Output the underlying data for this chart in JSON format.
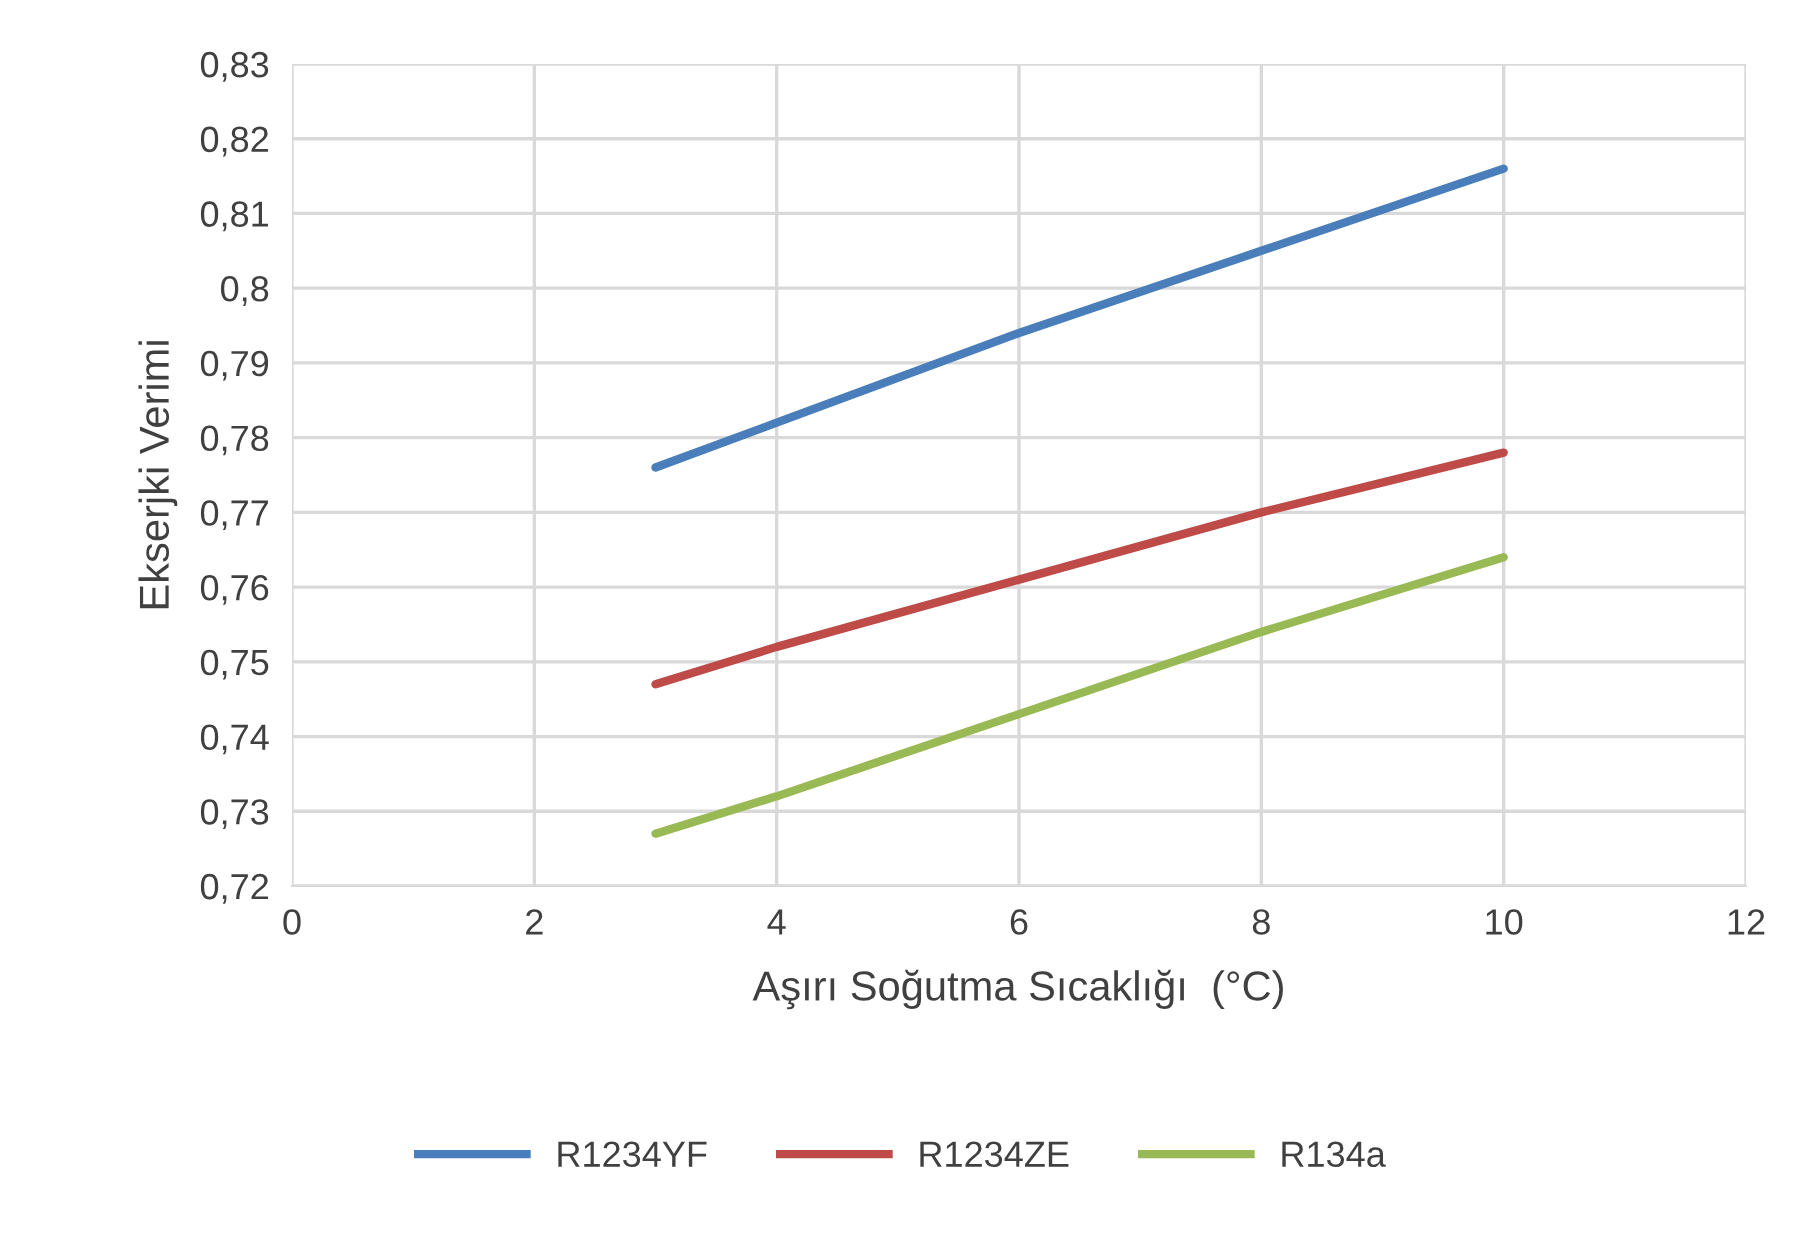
{
  "chart_data": {
    "type": "line",
    "xlabel": "Aşırı Soğutma Sıcaklığı  (°C)",
    "ylabel": "Ekserjki Verimi",
    "x": [
      3,
      4,
      6,
      8,
      10
    ],
    "series": [
      {
        "name": "R1234YF",
        "color": "#4a7ebb",
        "values": [
          0.776,
          0.782,
          0.794,
          0.805,
          0.816
        ]
      },
      {
        "name": "R1234ZE",
        "color": "#be4b48",
        "values": [
          0.747,
          0.752,
          0.761,
          0.77,
          0.778
        ]
      },
      {
        "name": "R134a",
        "color": "#98b954",
        "values": [
          0.727,
          0.732,
          0.743,
          0.754,
          0.764
        ]
      }
    ],
    "xlim": [
      0,
      12
    ],
    "xticks": [
      0,
      2,
      4,
      6,
      8,
      10,
      12
    ],
    "ylim": [
      0.72,
      0.83
    ],
    "yticks": [
      {
        "value": 0.72,
        "label": "0,72"
      },
      {
        "value": 0.73,
        "label": "0,73"
      },
      {
        "value": 0.74,
        "label": "0,74"
      },
      {
        "value": 0.75,
        "label": "0,75"
      },
      {
        "value": 0.76,
        "label": "0,76"
      },
      {
        "value": 0.77,
        "label": "0,77"
      },
      {
        "value": 0.78,
        "label": "0,78"
      },
      {
        "value": 0.79,
        "label": "0,79"
      },
      {
        "value": 0.8,
        "label": "0,8"
      },
      {
        "value": 0.81,
        "label": "0,81"
      },
      {
        "value": 0.82,
        "label": "0,82"
      },
      {
        "value": 0.83,
        "label": "0,83"
      }
    ],
    "grid": true,
    "legend": "bottom",
    "marker": "none",
    "line_style": "solid"
  }
}
